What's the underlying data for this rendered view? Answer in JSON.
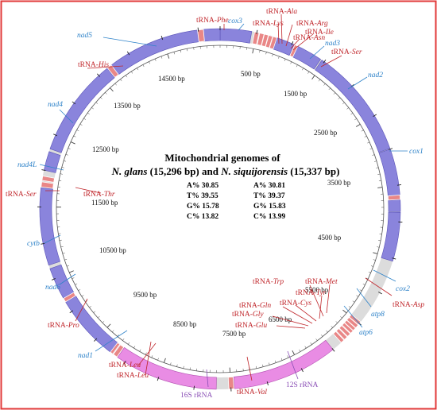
{
  "colors": {
    "border": "#e23a3a",
    "pcg_fill": "#8a84dc",
    "pcg_stroke": "#5a53b8",
    "rrna_fill": "#e98ce4",
    "rrna_stroke": "#b24fb0",
    "trna_fill": "#e98787",
    "pcg_label": "#2f83c9",
    "trna_label": "#c0262b",
    "rrna_label": "#8a4fb6"
  },
  "title": {
    "line1": "Mitochondrial genomes of",
    "species1": "N. glans",
    "size1": "(15,296 bp) and",
    "species2": "N. siquijorensis",
    "size2": "(15,337 bp)"
  },
  "composition_left": [
    "A% 30.85",
    "T% 39.55",
    "G% 15.78",
    "C% 13.82"
  ],
  "composition_right": [
    "A% 30.81",
    "T% 39.37",
    "G% 15.83",
    "C% 13.99"
  ],
  "scale_labels": [
    "500 bp",
    "1500 bp",
    "2500 bp",
    "3500 bp",
    "4500 bp",
    "5500 bp",
    "6500 bp",
    "7500 bp",
    "8500 bp",
    "9500 bp",
    "10500 bp",
    "11500 bp",
    "12500 bp",
    "13500 bp",
    "14500 bp"
  ],
  "genome_length": 15296,
  "features": [
    {
      "label": "cox1",
      "type": "pcg",
      "start": 1460,
      "end": 2990
    },
    {
      "label": "cox2",
      "type": "pcg",
      "start": 3000,
      "end": 3680
    },
    {
      "label": "atp8",
      "type": "pcg",
      "start": 3700,
      "end": 3860
    },
    {
      "label": "atp6",
      "type": "pcg",
      "start": 3870,
      "end": 4540
    },
    {
      "label": "cox3",
      "type": "pcg",
      "start": 0,
      "end": 430
    },
    {
      "label": "nad3",
      "type": "pcg",
      "start": 680,
      "end": 1030
    },
    {
      "label": "nad2",
      "type": "pcg",
      "start": 1080,
      "end": 1440
    },
    {
      "label": "nad5",
      "type": "pcg",
      "start": 13700,
      "end": 15296
    },
    {
      "label": "nad4",
      "type": "pcg",
      "start": 12300,
      "end": 13650
    },
    {
      "label": "nad4L",
      "type": "pcg",
      "start": 12000,
      "end": 12260
    },
    {
      "label": "cytb",
      "type": "pcg",
      "start": 10700,
      "end": 11760
    },
    {
      "label": "nad6",
      "type": "pcg",
      "start": 10200,
      "end": 10650
    },
    {
      "label": "nad1",
      "type": "pcg",
      "start": 9200,
      "end": 10150
    },
    {
      "label": "16S rRNA",
      "type": "rrna",
      "start": 7700,
      "end": 9120
    },
    {
      "label": "12S rRNA",
      "type": "rrna",
      "start": 6000,
      "end": 7450
    },
    {
      "label": "tRNA-Phe",
      "type": "trna",
      "start": 14990,
      "end": 15070
    },
    {
      "label": "tRNA-Lys",
      "type": "trna",
      "start": 470,
      "end": 530
    },
    {
      "label": "tRNA-Ala",
      "type": "trna",
      "start": 540,
      "end": 600
    },
    {
      "label": "tRNA-Arg",
      "type": "trna",
      "start": 605,
      "end": 660
    },
    {
      "label": "tRNA-Asn",
      "type": "trna",
      "start": 665,
      "end": 720
    },
    {
      "label": "tRNA-Ile",
      "type": "trna",
      "start": 725,
      "end": 780
    },
    {
      "label": "tRNA-Ser",
      "type": "trna",
      "start": 1040,
      "end": 1085
    },
    {
      "label": "tRNA-His",
      "type": "trna",
      "start": 13655,
      "end": 13720
    },
    {
      "label": "tRNA-Ser",
      "type": "trna",
      "start": 11860,
      "end": 11920
    },
    {
      "label": "tRNA-Thr",
      "type": "trna",
      "start": 11770,
      "end": 11840
    },
    {
      "label": "tRNA-Asp",
      "type": "trna",
      "start": 3635,
      "end": 3695
    },
    {
      "label": "tRNA-Met",
      "type": "trna",
      "start": 5470,
      "end": 5520
    },
    {
      "label": "tRNA-Tyr",
      "type": "trna",
      "start": 5525,
      "end": 5575
    },
    {
      "label": "tRNA-Trp",
      "type": "trna",
      "start": 5580,
      "end": 5625
    },
    {
      "label": "tRNA-Cys",
      "type": "trna",
      "start": 5630,
      "end": 5675
    },
    {
      "label": "tRNA-Gln",
      "type": "trna",
      "start": 5685,
      "end": 5735
    },
    {
      "label": "tRNA-Gly",
      "type": "trna",
      "start": 5745,
      "end": 5795
    },
    {
      "label": "tRNA-Glu",
      "type": "trna",
      "start": 5805,
      "end": 5855
    },
    {
      "label": "tRNA-Val",
      "type": "trna",
      "start": 7460,
      "end": 7530
    },
    {
      "label": "tRNA-Leu",
      "type": "trna",
      "start": 9130,
      "end": 9190
    },
    {
      "label": "tRNA-Leu",
      "type": "trna",
      "start": 9200,
      "end": 9240
    },
    {
      "label": "tRNA-Pro",
      "type": "trna",
      "start": 10155,
      "end": 10210
    }
  ]
}
